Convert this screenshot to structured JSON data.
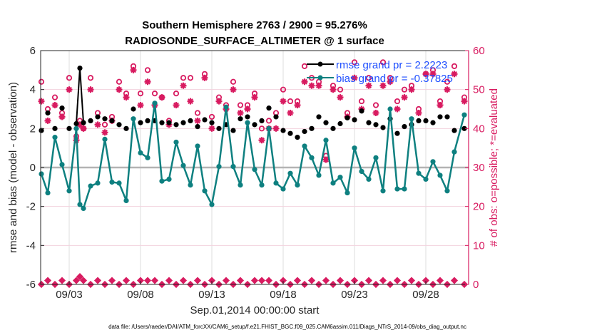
{
  "chart_data": {
    "type": "line",
    "title": "Southern Hemisphere 2763 / 2900 = 95.276%",
    "subtitle": "RADIOSONDE_SURFACE_ALTIMETER @ 1 surface",
    "xlabel": "Sep.01,2014 00:00:00 start",
    "ylabel": "rmse and bias (model - observation)",
    "ylabel_right": "# of obs: o=possible; *=evaluated",
    "footer": "data file: /Users/raeder/DAI/ATM_forcXX/CAM6_setup/f.e21.FHIST_BGC.f09_025.CAM6assim.011/Diags_NTrS_2014-09/obs_diag_output.nc",
    "xlim": [
      0,
      30
    ],
    "ylim": [
      -6,
      6
    ],
    "ylim_right": [
      0,
      60
    ],
    "x_ticks": [
      2,
      7,
      12,
      17,
      22,
      27
    ],
    "x_tick_labels": [
      "09/03",
      "09/08",
      "09/13",
      "09/18",
      "09/23",
      "09/28"
    ],
    "y_ticks": [
      -6,
      -4,
      -2,
      0,
      2,
      4,
      6
    ],
    "y_tick_labels": [
      "-6",
      "-4",
      "-2",
      "0",
      "2",
      "4",
      "6"
    ],
    "y_ticks_right": [
      0,
      10,
      20,
      30,
      40,
      50,
      60
    ],
    "y_tick_labels_right": [
      "0",
      "10",
      "20",
      "30",
      "40",
      "50",
      "60"
    ],
    "grid": true,
    "legend_position": "top-right",
    "colors": {
      "rmse": "#000000",
      "bias": "#0e8080",
      "obs": "#d81b60",
      "zero_line": "#b3b3b3"
    },
    "legend": [
      {
        "name": "rmse",
        "label": "rmse grand pr = 2.2223"
      },
      {
        "name": "bias",
        "label": "bias grand pr = -0.37825"
      }
    ],
    "x": [
      0.05,
      0.5,
      1.0,
      1.5,
      2.0,
      2.5,
      2.75,
      3.0,
      3.5,
      4.0,
      4.5,
      5.0,
      5.5,
      6.0,
      6.5,
      7.0,
      7.5,
      8.0,
      8.5,
      9.0,
      9.5,
      10.0,
      10.5,
      11.0,
      11.5,
      12.0,
      12.5,
      13.0,
      13.5,
      14.0,
      14.5,
      15.0,
      15.5,
      16.0,
      16.5,
      17.0,
      17.5,
      18.0,
      18.5,
      19.0,
      19.5,
      20.0,
      20.5,
      21.0,
      21.5,
      22.0,
      22.5,
      23.0,
      23.5,
      24.0,
      24.5,
      25.0,
      25.5,
      26.0,
      26.5,
      27.0,
      27.5,
      28.0,
      28.5,
      29.0,
      29.7
    ],
    "series": [
      {
        "name": "rmse",
        "marker": "dot",
        "connected": false,
        "values": [
          1.9,
          2.8,
          2.0,
          3.05,
          2.0,
          2.25,
          5.1,
          2.3,
          2.4,
          2.6,
          2.5,
          2.4,
          2.2,
          2.0,
          3.0,
          2.3,
          2.4,
          2.4,
          2.3,
          2.3,
          2.2,
          2.3,
          2.4,
          2.1,
          2.45,
          2.3,
          2.0,
          2.2,
          1.9,
          2.5,
          2.6,
          2.2,
          2.4,
          3.05,
          2.6,
          1.9,
          1.75,
          1.55,
          1.85,
          2.0,
          2.6,
          2.3,
          2.0,
          2.25,
          2.55,
          2.45,
          2.9,
          2.3,
          2.2,
          2.05,
          2.5,
          1.75,
          2.1,
          2.2,
          2.4,
          2.4,
          2.3,
          2.6,
          2.6,
          1.9,
          2.0
        ]
      },
      {
        "name": "bias",
        "marker": "dot",
        "connected": true,
        "values": [
          -0.33,
          -1.3,
          1.55,
          0.15,
          -1.2,
          2.0,
          -1.9,
          -2.1,
          -0.95,
          -0.8,
          1.45,
          -0.75,
          -0.8,
          -1.7,
          2.5,
          0.75,
          0.5,
          3.3,
          -0.7,
          -0.6,
          1.3,
          0.1,
          -0.9,
          1.1,
          -1.2,
          -1.9,
          0.05,
          3.1,
          0.05,
          -0.9,
          2.3,
          -0.1,
          -0.9,
          2.0,
          -0.8,
          -1.1,
          -0.3,
          -0.9,
          1.1,
          0.5,
          -0.4,
          1.4,
          -0.8,
          -0.5,
          -1.3,
          1.0,
          -0.2,
          -0.6,
          0.5,
          -1.2,
          3.0,
          -1.1,
          -1.1,
          2.5,
          -0.3,
          -0.6,
          0.3,
          -0.4,
          -1.2,
          0.8,
          2.7
        ]
      },
      {
        "name": "obs_possible",
        "axis": "right",
        "marker": "circle",
        "values": [
          52,
          45,
          48,
          44,
          53,
          38,
          42,
          40,
          53,
          44,
          41,
          43,
          52,
          49,
          56,
          49,
          55,
          49,
          48,
          42,
          49,
          53,
          53,
          44,
          54,
          43,
          48,
          46,
          52,
          46,
          46,
          49,
          40,
          42,
          44,
          50,
          47,
          47,
          56,
          53,
          52,
          33,
          51,
          50,
          44,
          57,
          47,
          53,
          46,
          57,
          53,
          47,
          50,
          51,
          45,
          54,
          55,
          47,
          52,
          56,
          48
        ]
      },
      {
        "name": "obs_evaluated",
        "axis": "right",
        "marker": "asterisk",
        "values": [
          47,
          42,
          46,
          43,
          50,
          37,
          41,
          40,
          50,
          41,
          39,
          42,
          50,
          48,
          55,
          46,
          52,
          46,
          48,
          41,
          46,
          51,
          47,
          42,
          53,
          40,
          47,
          45,
          50,
          44,
          45,
          48,
          37,
          40,
          40,
          47,
          44,
          46,
          52,
          51,
          51,
          32,
          50,
          48,
          43,
          53,
          45,
          51,
          44,
          51,
          52,
          45,
          48,
          50,
          44,
          54,
          54,
          46,
          50,
          54,
          47
        ]
      },
      {
        "name": "obs_low_possible",
        "axis": "right",
        "marker": "circle",
        "values": [
          0,
          1,
          0,
          1,
          0,
          1,
          2,
          1,
          0,
          1,
          0,
          1,
          0,
          1,
          0,
          1,
          1,
          1,
          0,
          1,
          0,
          1,
          0,
          1,
          0,
          1,
          0,
          1,
          0,
          1,
          0,
          1,
          1,
          1,
          0,
          1,
          0,
          1,
          0,
          1,
          0,
          1,
          0,
          1,
          0,
          1,
          0,
          1,
          0,
          1,
          0,
          1,
          0,
          1,
          0,
          1,
          0,
          1,
          0,
          1,
          0
        ]
      },
      {
        "name": "obs_low_evaluated",
        "axis": "right",
        "marker": "asterisk",
        "values": [
          0,
          1,
          0,
          1,
          0,
          1,
          2,
          1,
          0,
          1,
          0,
          1,
          0,
          1,
          0,
          1,
          1,
          1,
          0,
          1,
          0,
          1,
          0,
          1,
          0,
          1,
          0,
          1,
          0,
          1,
          0,
          1,
          1,
          1,
          0,
          1,
          0,
          1,
          0,
          1,
          0,
          1,
          0,
          1,
          0,
          1,
          0,
          1,
          0,
          1,
          0,
          1,
          0,
          1,
          0,
          1,
          0,
          1,
          0,
          1,
          0
        ]
      }
    ]
  }
}
